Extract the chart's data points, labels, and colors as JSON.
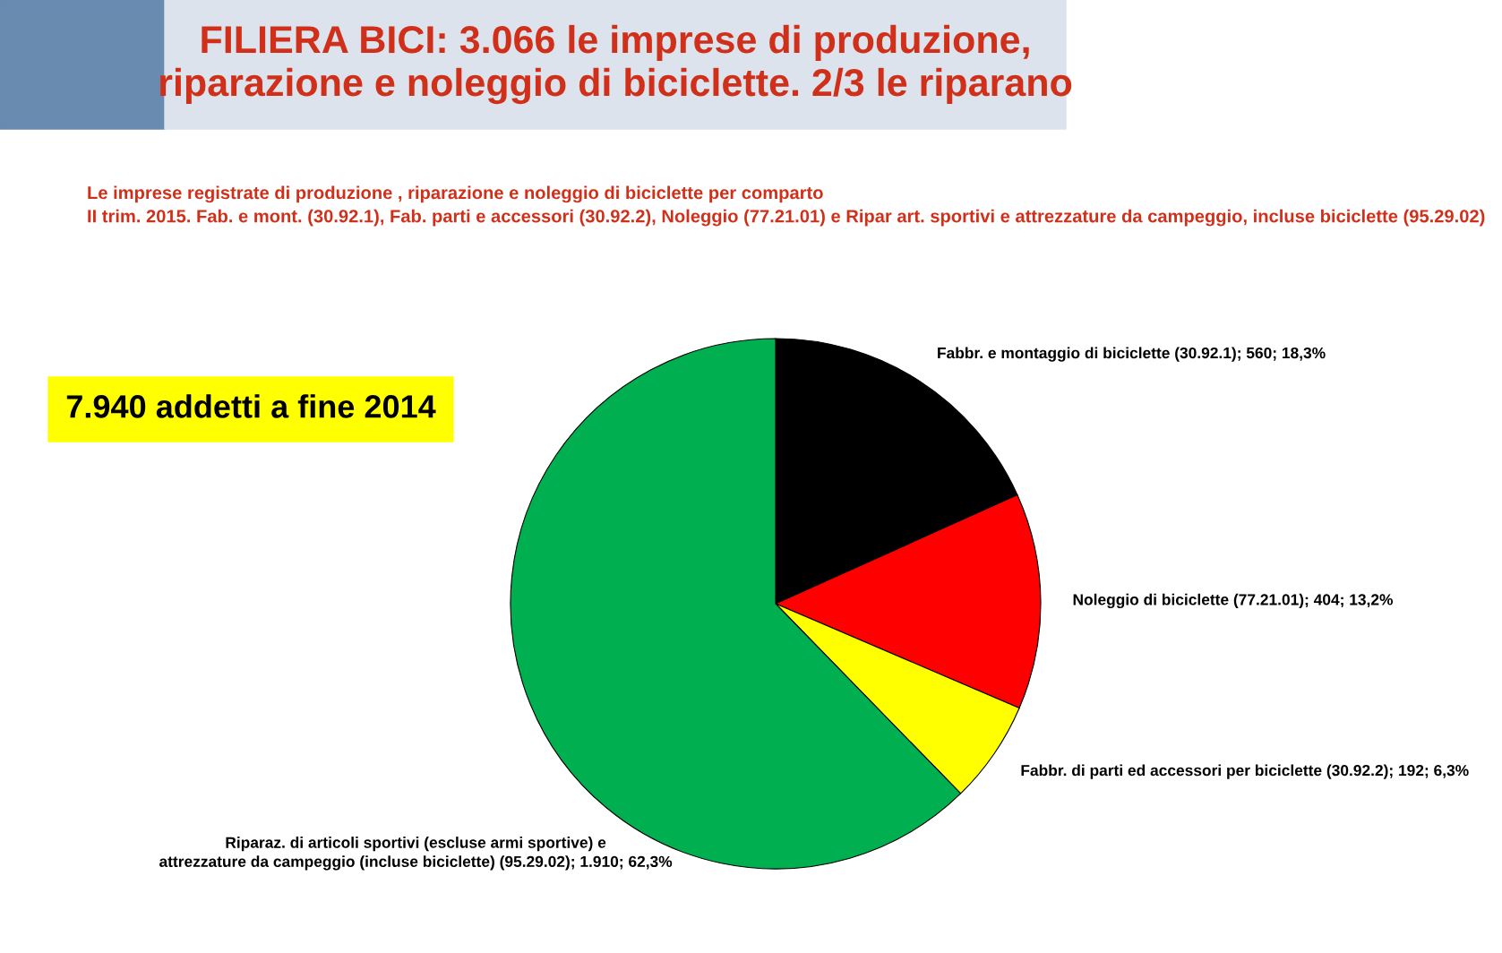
{
  "chart_data": {
    "type": "pie",
    "title": "FILIERA BICI: 3.066 le imprese di produzione,\nriparazione e noleggio di biciclette. 2/3 le riparano",
    "subtitle": "Le imprese registrate di produzione , riparazione e noleggio di biciclette per comparto\nII trim. 2015. Fab. e mont. (30.92.1), Fab. parti e accessori (30.92.2), Noleggio (77.21.01) e Ripar art. sportivi e attrezzature da campeggio, incluse biciclette (95.29.02)",
    "categories": [
      "Fabbr. e montaggio di biciclette (30.92.1)",
      "Noleggio di biciclette (77.21.01)",
      "Fabbr. di parti ed accessori per biciclette (30.92.2)",
      "Riparaz. di articoli sportivi (escluse armi sportive) e\nattrezzature da campeggio (incluse biciclette) (95.29.02)"
    ],
    "values": [
      560,
      404,
      192,
      1910
    ],
    "value_labels": [
      "560; 18,3%",
      "404; 13,2%",
      "192; 6,3%",
      "1.910; 62,3%"
    ],
    "colors": [
      "#000000",
      "#ff0000",
      "#ffff00",
      "#00b050"
    ],
    "annotations": [
      "7.940 addetti a fine 2014"
    ],
    "legend": false
  }
}
